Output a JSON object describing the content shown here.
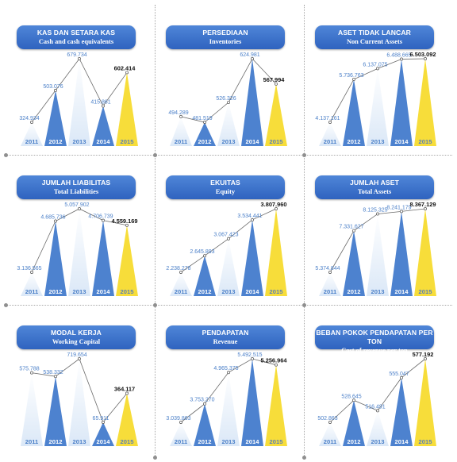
{
  "colors": {
    "pill_fill": "#3a70cc",
    "bar_pale": "#dbe8f7",
    "bar_blue": "#4d82cf",
    "bar_2015": "#f7dd3a",
    "label_blue": "#4a7fc8",
    "label_2015": "#111111",
    "year_label": "#4a7fc8"
  },
  "panels": [
    {
      "title_id": "KAS DAN SETARA KAS",
      "title_en": "Cash and cash equivalents",
      "chart_data": {
        "type": "bar",
        "categories": [
          "2011",
          "2012",
          "2013",
          "2014",
          "2015"
        ],
        "values": [
          324934,
          503076,
          679734,
          415861,
          602414
        ],
        "value_labels": [
          "324.934",
          "503.076",
          "679.734",
          "415.861",
          "602.414"
        ]
      }
    },
    {
      "title_id": "PERSEDIAAN",
      "title_en": "Inventories",
      "chart_data": {
        "type": "bar",
        "categories": [
          "2011",
          "2012",
          "2013",
          "2014",
          "2015"
        ],
        "values": [
          494289,
          481519,
          526326,
          624981,
          567994
        ],
        "value_labels": [
          "494.289",
          "481.519",
          "526.326",
          "624.981",
          "567.994"
        ]
      }
    },
    {
      "title_id": "ASET TIDAK LANCAR",
      "title_en": "Non Current Assets",
      "chart_data": {
        "type": "bar",
        "categories": [
          "2011",
          "2012",
          "2013",
          "2014",
          "2015"
        ],
        "values": [
          4137161,
          5736763,
          6137075,
          6488665,
          6503092
        ],
        "value_labels": [
          "4.137.161",
          "5.736.763",
          "6.137.075",
          "6.488.665",
          "6.503.092"
        ]
      }
    },
    {
      "title_id": "JUMLAH LIABILITAS",
      "title_en": "Total Liabilities",
      "chart_data": {
        "type": "bar",
        "categories": [
          "2011",
          "2012",
          "2013",
          "2014",
          "2015"
        ],
        "values": [
          3136565,
          4685736,
          5057902,
          4706739,
          4559169
        ],
        "value_labels": [
          "3.136.565",
          "4.685.736",
          "5.057.902",
          "4.706.739",
          "4.559.169"
        ]
      }
    },
    {
      "title_id": "EKUITAS",
      "title_en": "Equity",
      "chart_data": {
        "type": "bar",
        "categories": [
          "2011",
          "2012",
          "2013",
          "2014",
          "2015"
        ],
        "values": [
          2238278,
          2645893,
          3067423,
          3534441,
          3807960
        ],
        "value_labels": [
          "2.238.278",
          "2.645.893",
          "3.067.423",
          "3.534.441",
          "3.807.960"
        ]
      }
    },
    {
      "title_id": "JUMLAH ASET",
      "title_en": "Total Assets",
      "chart_data": {
        "type": "bar",
        "categories": [
          "2011",
          "2012",
          "2013",
          "2014",
          "2015"
        ],
        "values": [
          5374844,
          7331627,
          8125325,
          8241179,
          8367129
        ],
        "value_labels": [
          "5.374.844",
          "7.331.627",
          "8.125.325",
          "8.241.179",
          "8.367.129"
        ]
      }
    },
    {
      "title_id": "MODAL KERJA",
      "title_en": "Working Capital",
      "chart_data": {
        "type": "bar",
        "categories": [
          "2011",
          "2012",
          "2013",
          "2014",
          "2015"
        ],
        "values": [
          575788,
          538332,
          719654,
          65911,
          364117
        ],
        "value_labels": [
          "575.788",
          "538.332",
          "719.654",
          "65.911",
          "364.117"
        ]
      }
    },
    {
      "title_id": "PENDAPATAN",
      "title_en": "Revenue",
      "chart_data": {
        "type": "bar",
        "categories": [
          "2011",
          "2012",
          "2013",
          "2014",
          "2015"
        ],
        "values": [
          3039863,
          3753270,
          4965375,
          5492515,
          5256964
        ],
        "value_labels": [
          "3.039.863",
          "3.753.270",
          "4.965.375",
          "5.492.515",
          "5.256.964"
        ]
      }
    },
    {
      "title_id": "BEBAN POKOK PENDAPATAN PER TON",
      "title_en": "Cost of revenue per ton",
      "chart_data": {
        "type": "bar",
        "categories": [
          "2011",
          "2012",
          "2013",
          "2014",
          "2015"
        ],
        "values": [
          502863,
          528645,
          516491,
          555047,
          577192
        ],
        "value_labels": [
          "502.863",
          "528.645",
          "516.491",
          "555.047",
          "577.192"
        ]
      }
    }
  ]
}
